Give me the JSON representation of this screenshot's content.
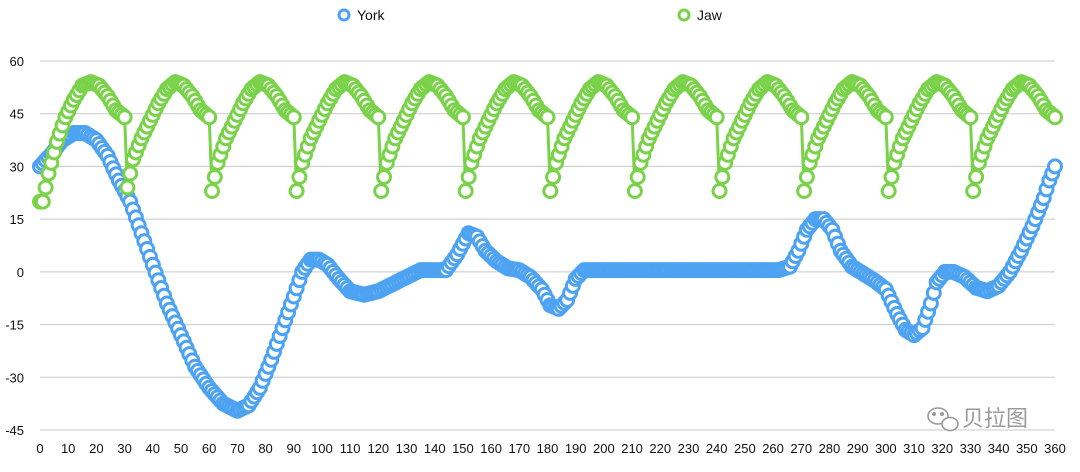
{
  "chart_data": {
    "type": "scatter",
    "title": "",
    "xlabel": "",
    "ylabel": "",
    "xlim": [
      0,
      360
    ],
    "ylim": [
      -45,
      60
    ],
    "x_ticks": [
      "0",
      "10",
      "20",
      "30",
      "40",
      "50",
      "60",
      "70",
      "80",
      "90",
      "100",
      "110",
      "120",
      "130",
      "140",
      "150",
      "160",
      "170",
      "180",
      "190",
      "200",
      "210",
      "220",
      "230",
      "240",
      "250",
      "260",
      "270",
      "280",
      "290",
      "300",
      "310",
      "320",
      "330",
      "340",
      "350",
      "360"
    ],
    "y_ticks": [
      "60",
      "45",
      "30",
      "15",
      "0",
      "-15",
      "-30",
      "-45"
    ],
    "grid": "horizontal",
    "legend_position": "top",
    "series": [
      {
        "name": "York",
        "color": "#4da3f2",
        "marker": "hollow-circle",
        "points": [
          [
            0,
            30
          ],
          [
            4,
            33.5
          ],
          [
            8,
            37.5
          ],
          [
            12,
            39.5
          ],
          [
            16,
            39.5
          ],
          [
            20,
            37.5
          ],
          [
            24,
            33
          ],
          [
            28,
            26
          ],
          [
            32,
            20
          ],
          [
            36,
            11
          ],
          [
            40,
            2
          ],
          [
            45,
            -9
          ],
          [
            50,
            -18
          ],
          [
            55,
            -27
          ],
          [
            60,
            -33
          ],
          [
            65,
            -37.5
          ],
          [
            70,
            -39.5
          ],
          [
            74,
            -38
          ],
          [
            78,
            -33
          ],
          [
            82,
            -25
          ],
          [
            86,
            -16
          ],
          [
            90,
            -7
          ],
          [
            93,
            0
          ],
          [
            96,
            3.5
          ],
          [
            99,
            3.5
          ],
          [
            102,
            2
          ],
          [
            106,
            -2
          ],
          [
            110,
            -5.5
          ],
          [
            115,
            -6.5
          ],
          [
            120,
            -5.5
          ],
          [
            125,
            -3.5
          ],
          [
            130,
            -1.5
          ],
          [
            135,
            0.5
          ],
          [
            140,
            0.5
          ],
          [
            144,
            0.5
          ],
          [
            148,
            5
          ],
          [
            152,
            11
          ],
          [
            155,
            10
          ],
          [
            158,
            6
          ],
          [
            162,
            3
          ],
          [
            166,
            1
          ],
          [
            170,
            0.5
          ],
          [
            174,
            -1.5
          ],
          [
            178,
            -5
          ],
          [
            181,
            -9.5
          ],
          [
            184,
            -10.5
          ],
          [
            187,
            -8
          ],
          [
            190,
            -2
          ],
          [
            193,
            0.5
          ],
          [
            200,
            0.5
          ],
          [
            220,
            0.5
          ],
          [
            240,
            0.5
          ],
          [
            262,
            0.5
          ],
          [
            266,
            1.5
          ],
          [
            269,
            6
          ],
          [
            272,
            12
          ],
          [
            275,
            15
          ],
          [
            278,
            15
          ],
          [
            281,
            12
          ],
          [
            284,
            6
          ],
          [
            288,
            1.5
          ],
          [
            292,
            -0.5
          ],
          [
            296,
            -2.5
          ],
          [
            300,
            -5
          ],
          [
            304,
            -12
          ],
          [
            307,
            -16.5
          ],
          [
            310,
            -18
          ],
          [
            313,
            -16
          ],
          [
            316,
            -9
          ],
          [
            318,
            -3
          ],
          [
            321,
            0
          ],
          [
            324,
            0
          ],
          [
            328,
            -1.5
          ],
          [
            332,
            -4.5
          ],
          [
            336,
            -5.5
          ],
          [
            340,
            -4
          ],
          [
            344,
            0
          ],
          [
            348,
            6
          ],
          [
            352,
            13
          ],
          [
            356,
            21
          ],
          [
            358,
            26
          ],
          [
            360,
            30
          ]
        ]
      },
      {
        "name": "Jaw",
        "color": "#7ad24a",
        "marker": "hollow-circle",
        "peaks": [
          17,
          47,
          77,
          107,
          137,
          167,
          197,
          227,
          257,
          287,
          317,
          347
        ],
        "points": [
          [
            0,
            20
          ],
          [
            1,
            20
          ],
          [
            3,
            28
          ],
          [
            6,
            37
          ],
          [
            9,
            44
          ],
          [
            12,
            49
          ],
          [
            15,
            53
          ],
          [
            18,
            54
          ],
          [
            21,
            53
          ],
          [
            24,
            50
          ],
          [
            27,
            46
          ],
          [
            30,
            44
          ],
          [
            31,
            24
          ],
          [
            33,
            32
          ],
          [
            36,
            38
          ],
          [
            39,
            43
          ],
          [
            42,
            48
          ],
          [
            45,
            52
          ],
          [
            48,
            54
          ],
          [
            51,
            53
          ],
          [
            54,
            50
          ],
          [
            57,
            46
          ],
          [
            60,
            44
          ],
          [
            61,
            23
          ],
          [
            63,
            31
          ],
          [
            66,
            38
          ],
          [
            69,
            43
          ],
          [
            72,
            48
          ],
          [
            75,
            52
          ],
          [
            78,
            54
          ],
          [
            81,
            53
          ],
          [
            84,
            50
          ],
          [
            87,
            46
          ],
          [
            90,
            44
          ],
          [
            91,
            23
          ],
          [
            93,
            31
          ],
          [
            96,
            38
          ],
          [
            99,
            43
          ],
          [
            102,
            48
          ],
          [
            105,
            52
          ],
          [
            108,
            54
          ],
          [
            111,
            53
          ],
          [
            114,
            50
          ],
          [
            117,
            46
          ],
          [
            120,
            44
          ],
          [
            121,
            23
          ],
          [
            123,
            31
          ],
          [
            126,
            38
          ],
          [
            129,
            43
          ],
          [
            132,
            48
          ],
          [
            135,
            52
          ],
          [
            138,
            54
          ],
          [
            141,
            53
          ],
          [
            144,
            50
          ],
          [
            147,
            46
          ],
          [
            150,
            44
          ],
          [
            151,
            23
          ],
          [
            153,
            31
          ],
          [
            156,
            38
          ],
          [
            159,
            43
          ],
          [
            162,
            48
          ],
          [
            165,
            52
          ],
          [
            168,
            54
          ],
          [
            171,
            53
          ],
          [
            174,
            50
          ],
          [
            177,
            46
          ],
          [
            180,
            44
          ],
          [
            181,
            23
          ],
          [
            183,
            31
          ],
          [
            186,
            38
          ],
          [
            189,
            43
          ],
          [
            192,
            48
          ],
          [
            195,
            52
          ],
          [
            198,
            54
          ],
          [
            201,
            53
          ],
          [
            204,
            50
          ],
          [
            207,
            46
          ],
          [
            210,
            44
          ],
          [
            211,
            23
          ],
          [
            213,
            31
          ],
          [
            216,
            38
          ],
          [
            219,
            43
          ],
          [
            222,
            48
          ],
          [
            225,
            52
          ],
          [
            228,
            54
          ],
          [
            231,
            53
          ],
          [
            234,
            50
          ],
          [
            237,
            46
          ],
          [
            240,
            44
          ],
          [
            241,
            23
          ],
          [
            243,
            31
          ],
          [
            246,
            38
          ],
          [
            249,
            43
          ],
          [
            252,
            48
          ],
          [
            255,
            52
          ],
          [
            258,
            54
          ],
          [
            261,
            53
          ],
          [
            264,
            50
          ],
          [
            267,
            46
          ],
          [
            270,
            44
          ],
          [
            271,
            23
          ],
          [
            273,
            31
          ],
          [
            276,
            38
          ],
          [
            279,
            43
          ],
          [
            282,
            48
          ],
          [
            285,
            52
          ],
          [
            288,
            54
          ],
          [
            291,
            53
          ],
          [
            294,
            50
          ],
          [
            297,
            46
          ],
          [
            300,
            44
          ],
          [
            301,
            23
          ],
          [
            303,
            31
          ],
          [
            306,
            38
          ],
          [
            309,
            43
          ],
          [
            312,
            48
          ],
          [
            315,
            52
          ],
          [
            318,
            54
          ],
          [
            321,
            53
          ],
          [
            324,
            50
          ],
          [
            327,
            46
          ],
          [
            330,
            44
          ],
          [
            331,
            23
          ],
          [
            333,
            31
          ],
          [
            336,
            38
          ],
          [
            339,
            43
          ],
          [
            342,
            48
          ],
          [
            345,
            52
          ],
          [
            348,
            54
          ],
          [
            351,
            53
          ],
          [
            354,
            50
          ],
          [
            357,
            46
          ],
          [
            360,
            44
          ]
        ]
      }
    ]
  },
  "watermark": {
    "text": "贝拉图",
    "icon": "wechat-icon"
  }
}
